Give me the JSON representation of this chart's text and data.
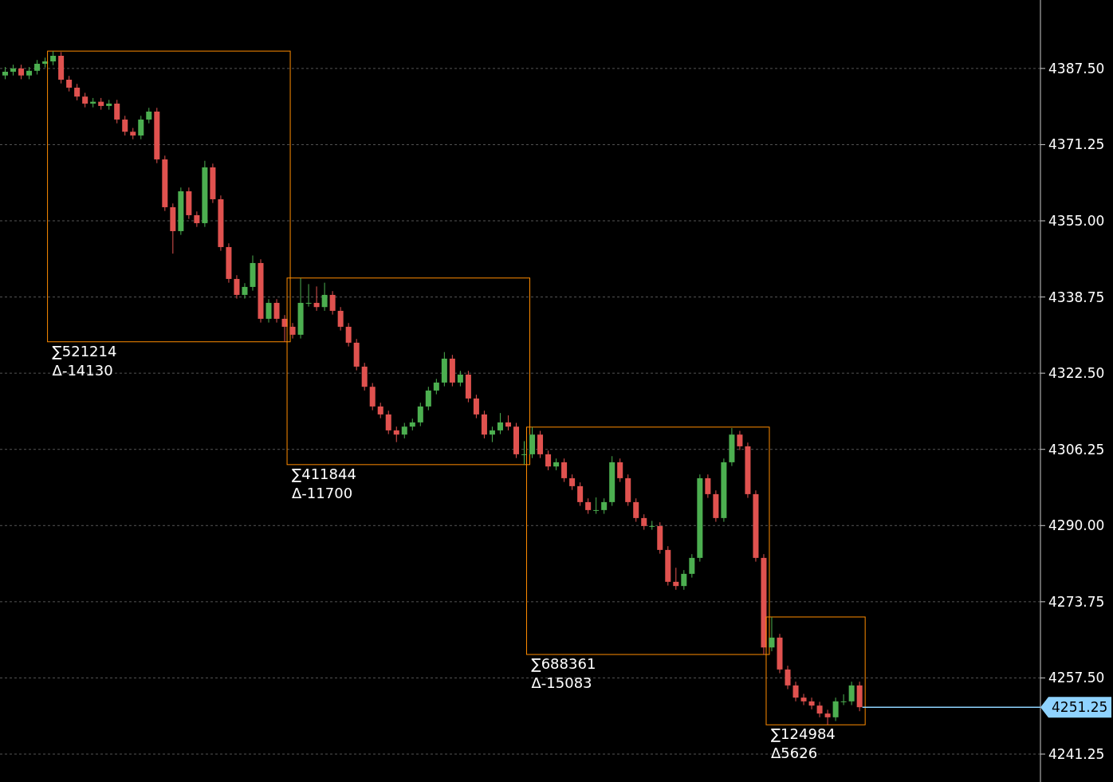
{
  "chart_data": {
    "type": "candlestick",
    "categories": [
      null,
      null,
      null,
      null,
      null,
      null,
      null,
      null,
      null,
      null,
      null,
      null,
      null,
      null,
      null,
      null,
      null,
      null,
      null,
      null,
      null,
      null,
      null,
      null,
      null,
      null,
      null,
      null,
      null,
      null,
      null,
      null,
      null,
      null,
      null,
      null,
      null,
      null,
      null,
      null,
      null,
      null,
      null,
      null,
      null,
      null,
      null,
      null,
      null,
      null,
      null,
      null,
      null,
      null,
      null,
      null,
      null,
      null,
      null,
      null,
      null,
      null,
      null,
      null,
      null,
      null,
      null,
      null,
      null,
      null,
      null,
      null,
      null,
      null,
      null,
      null,
      null,
      null,
      null,
      null,
      null,
      null,
      null,
      null,
      null,
      null,
      null,
      null,
      null,
      null,
      null,
      null,
      null,
      null,
      null,
      null,
      null,
      null,
      null,
      null,
      null,
      null,
      null,
      null,
      null,
      null,
      null,
      null,
      null,
      null,
      null,
      null,
      null,
      null,
      null,
      null,
      null,
      null,
      null,
      null,
      null,
      null,
      null,
      null,
      null,
      null,
      null,
      null,
      null,
      null
    ],
    "ylim": [
      4235.3,
      4402.1
    ],
    "yticks": [
      {
        "value": 4241.25,
        "label": "4241.25"
      },
      {
        "value": 4257.5,
        "label": "4257.50"
      },
      {
        "value": 4273.75,
        "label": "4273.75"
      },
      {
        "value": 4290,
        "label": "4290.00"
      },
      {
        "value": 4306.25,
        "label": "4306.25"
      },
      {
        "value": 4322.5,
        "label": "4322.50"
      },
      {
        "value": 4338.75,
        "label": "4338.75"
      },
      {
        "value": 4355,
        "label": "4355.00"
      },
      {
        "value": 4371.25,
        "label": "4371.25"
      },
      {
        "value": 4387.5,
        "label": "4387.50"
      }
    ],
    "grid": "y",
    "series": [
      {
        "ohlc": [
          [
            4386.0,
            4387.8,
            4385.2,
            4386.8
          ],
          [
            4386.8,
            4388.3,
            4386.0,
            4387.5
          ],
          [
            4387.5,
            4388.3,
            4385.2,
            4386.0
          ],
          [
            4386.0,
            4387.8,
            4385.2,
            4387.0
          ],
          [
            4387.0,
            4389.3,
            4386.2,
            4388.5
          ],
          [
            4388.5,
            4389.8,
            4387.7,
            4389.0
          ],
          null,
          null,
          null,
          null,
          null,
          null,
          null,
          null,
          null,
          null,
          null,
          null,
          null,
          null,
          null,
          null,
          null,
          null,
          null,
          null,
          null,
          null,
          null,
          null,
          null,
          null,
          null,
          null,
          null,
          null,
          null,
          null,
          null,
          null,
          null,
          null,
          null,
          null,
          null,
          null,
          null,
          null,
          null,
          null,
          null,
          null,
          null,
          null,
          null,
          null,
          null,
          null,
          null,
          null,
          null,
          null,
          null,
          null,
          null,
          null,
          null,
          null,
          null,
          null,
          null,
          null,
          null,
          null,
          null,
          null,
          null,
          null,
          null,
          null,
          null,
          null,
          null,
          null,
          null,
          null,
          null,
          null,
          null,
          null,
          null,
          null,
          null,
          null,
          null,
          null,
          null,
          null,
          null,
          null,
          null,
          null,
          null,
          null,
          null,
          null,
          null,
          null,
          null,
          null,
          null,
          null,
          null,
          null,
          null,
          null,
          null,
          null,
          null,
          null,
          null,
          null,
          null,
          null,
          null,
          null,
          null,
          null,
          null,
          null
        ]
      },
      {
        "ohlc": [
          null,
          null,
          null,
          null,
          null,
          null,
          [
            4389.0,
            4391.2,
            4388.2,
            4390.2
          ],
          [
            4390.2,
            4391.0,
            4384.3,
            4385.1
          ],
          [
            4385.1,
            4385.9,
            4382.6,
            4383.4
          ],
          [
            4383.4,
            4384.2,
            4380.7,
            4381.5
          ],
          [
            4381.5,
            4382.3,
            4379.2,
            4380.0
          ],
          [
            4380.0,
            4381.2,
            4379.2,
            4380.4
          ],
          [
            4380.4,
            4381.2,
            4378.7,
            4379.5
          ],
          [
            4379.5,
            4380.8,
            4378.7,
            4380.0
          ],
          [
            4380.0,
            4380.8,
            4375.8,
            4376.6
          ],
          [
            4376.6,
            4377.4,
            4373.2,
            4374.0
          ],
          [
            4374.0,
            4374.8,
            4372.4,
            4373.2
          ],
          [
            4373.2,
            4377.4,
            4372.4,
            4376.6
          ],
          [
            4376.6,
            4379.1,
            4375.8,
            4378.3
          ],
          [
            4378.3,
            4379.1,
            4367.3,
            4368.1
          ],
          [
            4368.1,
            4368.9,
            4357.1,
            4357.9
          ],
          [
            4357.9,
            4358.7,
            4348.0,
            4352.8
          ],
          [
            4352.8,
            4362.1,
            4352.0,
            4361.3
          ],
          [
            4361.3,
            4362.1,
            4355.4,
            4356.2
          ],
          [
            4356.2,
            4357.0,
            4353.7,
            4354.5
          ],
          [
            4354.5,
            4367.8,
            4353.7,
            4366.4
          ],
          [
            4366.4,
            4367.2,
            4358.8,
            4359.6
          ],
          [
            4359.6,
            4360.4,
            4348.6,
            4349.4
          ],
          [
            4349.4,
            4350.2,
            4341.8,
            4342.6
          ],
          [
            4342.6,
            4343.4,
            4338.4,
            4339.2
          ],
          [
            4339.2,
            4341.7,
            4338.4,
            4340.9
          ],
          [
            4340.9,
            4347.6,
            4340.1,
            4346.0
          ],
          [
            4346.0,
            4346.8,
            4333.3,
            4334.1
          ],
          [
            4334.1,
            4338.3,
            4333.3,
            4337.5
          ],
          [
            4337.5,
            4338.3,
            4333.3,
            4334.1
          ],
          [
            4334.1,
            4334.9,
            4329.2,
            4332.4
          ],
          null,
          null,
          null,
          null,
          null,
          null,
          null,
          null,
          null,
          null,
          null,
          null,
          null,
          null,
          null,
          null,
          null,
          null,
          null,
          null,
          null,
          null,
          null,
          null,
          null,
          null,
          null,
          null,
          null,
          null,
          null,
          null,
          null,
          null,
          null,
          null,
          null,
          null,
          null,
          null,
          null,
          null,
          null,
          null,
          null,
          null,
          null,
          null,
          null,
          null,
          null,
          null,
          null,
          null,
          null,
          null,
          null,
          null,
          null,
          null,
          null,
          null,
          null,
          null,
          null,
          null,
          null,
          null,
          null,
          null,
          null,
          null,
          null,
          null,
          null,
          null,
          null,
          null,
          null,
          null,
          null,
          null,
          null,
          null,
          null,
          null,
          null,
          null,
          null,
          null,
          null,
          null,
          null,
          null
        ]
      },
      {
        "ohlc": [
          null,
          null,
          null,
          null,
          null,
          null,
          null,
          null,
          null,
          null,
          null,
          null,
          null,
          null,
          null,
          null,
          null,
          null,
          null,
          null,
          null,
          null,
          null,
          null,
          null,
          null,
          null,
          null,
          null,
          null,
          null,
          null,
          null,
          null,
          null,
          null,
          [
            4332.4,
            4333.2,
            4329.9,
            4330.7
          ],
          [
            4330.7,
            4342.8,
            4329.9,
            4337.5
          ],
          [
            4337.5,
            4341.5,
            4336.7,
            4337.5
          ],
          [
            4337.5,
            4341.0,
            4335.8,
            4336.6
          ],
          [
            4336.6,
            4341.8,
            4335.8,
            4339.2
          ],
          [
            4339.2,
            4340.0,
            4335.0,
            4335.8
          ],
          [
            4335.8,
            4336.6,
            4331.6,
            4332.4
          ],
          [
            4332.4,
            4333.2,
            4328.2,
            4329.0
          ],
          [
            4329.0,
            4329.8,
            4323.1,
            4323.9
          ],
          [
            4323.9,
            4324.7,
            4318.8,
            4319.6
          ],
          [
            4319.6,
            4320.4,
            4314.6,
            4315.4
          ],
          [
            4315.4,
            4316.2,
            4312.9,
            4313.7
          ],
          [
            4313.7,
            4314.5,
            4309.5,
            4310.3
          ],
          [
            4310.3,
            4311.1,
            4307.8,
            4309.4
          ],
          [
            4309.4,
            4311.9,
            4308.6,
            4311.1
          ],
          [
            4311.1,
            4312.8,
            4310.3,
            4312.0
          ],
          [
            4312.0,
            4316.2,
            4311.2,
            4315.4
          ],
          [
            4315.4,
            4319.6,
            4314.6,
            4318.8
          ],
          [
            4318.8,
            4321.3,
            4318.0,
            4320.5
          ],
          [
            4320.5,
            4327.0,
            4319.7,
            4325.6
          ],
          [
            4325.6,
            4326.4,
            4319.7,
            4320.5
          ],
          [
            4320.5,
            4323.0,
            4319.7,
            4322.2
          ],
          [
            4322.2,
            4323.0,
            4316.3,
            4317.1
          ],
          [
            4317.1,
            4317.9,
            4312.9,
            4313.7
          ],
          [
            4313.7,
            4314.5,
            4308.6,
            4309.4
          ],
          [
            4309.4,
            4311.1,
            4307.8,
            4310.3
          ],
          [
            4310.3,
            4314.0,
            4309.5,
            4312.0
          ],
          [
            4312.0,
            4313.5,
            4310.3,
            4311.1
          ],
          [
            4311.1,
            4311.9,
            4304.4,
            4305.2
          ],
          [
            4305.2,
            4308.0,
            4303.0,
            4305.2
          ],
          null,
          null,
          null,
          null,
          null,
          null,
          null,
          null,
          null,
          null,
          null,
          null,
          null,
          null,
          null,
          null,
          null,
          null,
          null,
          null,
          null,
          null,
          null,
          null,
          null,
          null,
          null,
          null,
          null,
          null,
          null,
          null,
          null,
          null,
          null,
          null,
          null,
          null,
          null,
          null,
          null,
          null,
          null,
          null,
          null,
          null,
          null,
          null,
          null,
          null,
          null,
          null,
          null,
          null,
          null,
          null,
          null,
          null,
          null,
          null,
          null,
          null,
          null,
          null
        ]
      },
      {
        "ohlc": [
          null,
          null,
          null,
          null,
          null,
          null,
          null,
          null,
          null,
          null,
          null,
          null,
          null,
          null,
          null,
          null,
          null,
          null,
          null,
          null,
          null,
          null,
          null,
          null,
          null,
          null,
          null,
          null,
          null,
          null,
          null,
          null,
          null,
          null,
          null,
          null,
          null,
          null,
          null,
          null,
          null,
          null,
          null,
          null,
          null,
          null,
          null,
          null,
          null,
          null,
          null,
          null,
          null,
          null,
          null,
          null,
          null,
          null,
          null,
          null,
          null,
          null,
          null,
          null,
          null,
          null,
          [
            4305.2,
            4311.0,
            4304.4,
            4309.4
          ],
          [
            4309.4,
            4310.2,
            4304.4,
            4305.2
          ],
          [
            4305.2,
            4306.0,
            4301.8,
            4302.6
          ],
          [
            4302.6,
            4304.3,
            4301.8,
            4303.5
          ],
          [
            4303.5,
            4304.3,
            4299.3,
            4300.1
          ],
          [
            4300.1,
            4300.9,
            4297.6,
            4298.4
          ],
          [
            4298.4,
            4299.2,
            4294.2,
            4295.0
          ],
          [
            4295.0,
            4295.8,
            4292.5,
            4293.3
          ],
          [
            4293.3,
            4296.0,
            4292.5,
            4293.3
          ],
          [
            4293.3,
            4295.8,
            4292.5,
            4295.0
          ],
          [
            4295.0,
            4304.8,
            4294.2,
            4303.5
          ],
          [
            4303.5,
            4304.3,
            4299.3,
            4300.1
          ],
          [
            4300.1,
            4300.9,
            4294.2,
            4295.0
          ],
          [
            4295.0,
            4295.8,
            4290.8,
            4291.6
          ],
          [
            4291.6,
            4292.4,
            4289.1,
            4289.9
          ],
          [
            4289.9,
            4291.0,
            4289.1,
            4289.9
          ],
          [
            4289.9,
            4290.7,
            4284.0,
            4284.8
          ],
          [
            4284.8,
            4285.6,
            4277.2,
            4278.0
          ],
          [
            4278.0,
            4281.0,
            4276.3,
            4277.1
          ],
          [
            4277.1,
            4280.5,
            4276.3,
            4279.7
          ],
          [
            4279.7,
            4283.9,
            4278.9,
            4283.1
          ],
          [
            4283.1,
            4300.9,
            4282.3,
            4300.1
          ],
          [
            4300.1,
            4300.9,
            4295.9,
            4296.7
          ],
          [
            4296.7,
            4297.5,
            4290.8,
            4291.6
          ],
          [
            4291.6,
            4304.3,
            4290.8,
            4303.5
          ],
          [
            4303.5,
            4310.8,
            4302.7,
            4309.4
          ],
          [
            4309.4,
            4310.2,
            4306.1,
            4306.9
          ],
          [
            4306.9,
            4307.7,
            4295.9,
            4296.7
          ],
          [
            4296.7,
            4297.5,
            4282.3,
            4283.1
          ],
          [
            4283.1,
            4283.9,
            4262.5,
            4264.0
          ],
          null,
          null,
          null,
          null,
          null,
          null,
          null,
          null,
          null,
          null,
          null,
          null,
          null,
          null,
          null,
          null,
          null,
          null,
          null,
          null,
          null,
          null,
          null,
          null,
          null,
          null,
          null,
          null,
          null,
          null,
          null,
          null,
          null,
          null
        ]
      },
      {
        "ohlc": [
          null,
          null,
          null,
          null,
          null,
          null,
          null,
          null,
          null,
          null,
          null,
          null,
          null,
          null,
          null,
          null,
          null,
          null,
          null,
          null,
          null,
          null,
          null,
          null,
          null,
          null,
          null,
          null,
          null,
          null,
          null,
          null,
          null,
          null,
          null,
          null,
          null,
          null,
          null,
          null,
          null,
          null,
          null,
          null,
          null,
          null,
          null,
          null,
          null,
          null,
          null,
          null,
          null,
          null,
          null,
          null,
          null,
          null,
          null,
          null,
          null,
          null,
          null,
          null,
          null,
          null,
          null,
          null,
          null,
          null,
          null,
          null,
          null,
          null,
          null,
          null,
          null,
          null,
          null,
          null,
          null,
          null,
          null,
          null,
          null,
          null,
          null,
          null,
          null,
          null,
          null,
          null,
          null,
          null,
          null,
          null,
          [
            4264.0,
            4270.5,
            4263.2,
            4266.1
          ],
          [
            4266.1,
            4266.9,
            4258.5,
            4259.3
          ],
          [
            4259.3,
            4260.1,
            4255.1,
            4255.9
          ],
          [
            4255.9,
            4256.7,
            4252.5,
            4253.3
          ],
          [
            4253.3,
            4254.1,
            4251.7,
            4252.5
          ],
          [
            4252.5,
            4253.3,
            4250.8,
            4251.6
          ],
          [
            4251.6,
            4252.4,
            4249.1,
            4249.9
          ],
          [
            4249.9,
            4250.7,
            4247.5,
            4249.1
          ],
          [
            4249.1,
            4253.3,
            4248.3,
            4252.5
          ],
          [
            4252.5,
            4254.0,
            4251.7,
            4252.5
          ],
          [
            4252.5,
            4256.7,
            4251.7,
            4255.9
          ],
          [
            4255.9,
            4256.7,
            4250.4,
            4251.25
          ],
          null,
          null,
          null,
          null,
          null,
          null,
          null,
          null,
          null,
          null,
          null,
          null,
          null,
          null,
          null,
          null,
          null,
          null,
          null,
          null,
          null,
          null
        ]
      }
    ],
    "annotations": [
      "∑521214",
      "Δ-14130",
      "∑411844",
      "Δ-11700",
      "∑688361",
      "Δ-15083",
      "∑124984",
      "Δ5626"
    ],
    "ref_lines": [
      {
        "axis": "y",
        "value": 4251.25,
        "label": "4251.25",
        "color": "#8fd3ff"
      }
    ]
  }
}
